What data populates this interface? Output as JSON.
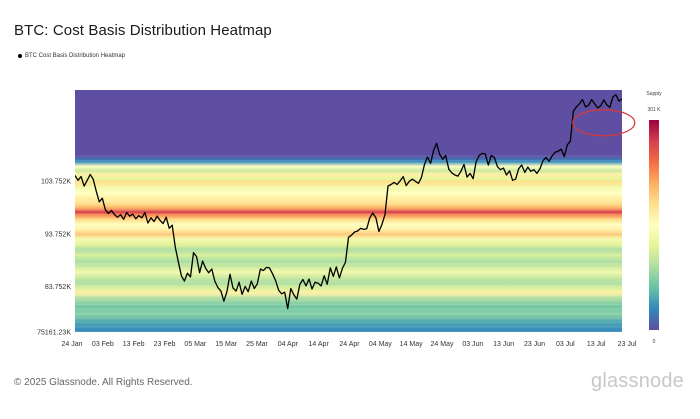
{
  "page": {
    "title": "BTC: Cost Basis Distribution Heatmap",
    "legend_label": "BTC Cost Basis Distribution Heatmap",
    "footer": "© 2025 Glassnode. All Rights Reserved.",
    "brand": "glassnode"
  },
  "chart_data": {
    "type": "heatmap",
    "title": "BTC: Cost Basis Distribution Heatmap",
    "series": [
      {
        "name": "BTC Cost Basis Distribution Heatmap",
        "type": "line",
        "color": "#000000"
      }
    ],
    "x_ticks": [
      "24 Jan",
      "03 Feb",
      "13 Feb",
      "23 Feb",
      "05 Mar",
      "15 Mar",
      "25 Mar",
      "04 Apr",
      "14 Apr",
      "24 Apr",
      "04 May",
      "14 May",
      "24 May",
      "03 Jun",
      "13 Jun",
      "23 Jun",
      "03 Jul",
      "13 Jul",
      "23 Jul"
    ],
    "y_ticks": [
      "103.752K",
      "93.752K",
      "83.752K",
      "75161.23K"
    ],
    "y_tick_values": [
      103752,
      93752,
      83752,
      75161.23
    ],
    "ylim": [
      75161.23,
      121000
    ],
    "colorbar": {
      "title": "Supply",
      "max_label": "301 K",
      "min_label": "0"
    },
    "colorscale": [
      "#5e4fa2",
      "#3288bd",
      "#66c2a5",
      "#abdda4",
      "#e6f598",
      "#ffffbf",
      "#fee08b",
      "#fdae61",
      "#f46d43",
      "#d53e4f",
      "#9e0142"
    ],
    "heat_bands": [
      {
        "price": 121000,
        "intensity": 0.0
      },
      {
        "price": 108500,
        "intensity": 0.0
      },
      {
        "price": 107500,
        "intensity": 0.1
      },
      {
        "price": 106500,
        "intensity": 0.5
      },
      {
        "price": 105800,
        "intensity": 0.35
      },
      {
        "price": 105000,
        "intensity": 0.55
      },
      {
        "price": 104200,
        "intensity": 0.4
      },
      {
        "price": 103500,
        "intensity": 0.6
      },
      {
        "price": 102500,
        "intensity": 0.45
      },
      {
        "price": 101500,
        "intensity": 0.5
      },
      {
        "price": 100500,
        "intensity": 0.55
      },
      {
        "price": 99500,
        "intensity": 0.6
      },
      {
        "price": 98600,
        "intensity": 0.7
      },
      {
        "price": 97900,
        "intensity": 0.9
      },
      {
        "price": 97300,
        "intensity": 0.75
      },
      {
        "price": 96400,
        "intensity": 0.6
      },
      {
        "price": 95500,
        "intensity": 0.5
      },
      {
        "price": 94500,
        "intensity": 0.55
      },
      {
        "price": 93700,
        "intensity": 0.65
      },
      {
        "price": 92800,
        "intensity": 0.45
      },
      {
        "price": 91800,
        "intensity": 0.4
      },
      {
        "price": 90700,
        "intensity": 0.3
      },
      {
        "price": 89700,
        "intensity": 0.38
      },
      {
        "price": 88700,
        "intensity": 0.3
      },
      {
        "price": 87700,
        "intensity": 0.34
      },
      {
        "price": 86500,
        "intensity": 0.45
      },
      {
        "price": 85500,
        "intensity": 0.35
      },
      {
        "price": 84500,
        "intensity": 0.3
      },
      {
        "price": 83500,
        "intensity": 0.38
      },
      {
        "price": 82500,
        "intensity": 0.55
      },
      {
        "price": 81500,
        "intensity": 0.3
      },
      {
        "price": 80000,
        "intensity": 0.22
      },
      {
        "price": 78500,
        "intensity": 0.25
      },
      {
        "price": 77000,
        "intensity": 0.15
      },
      {
        "price": 75161,
        "intensity": 0.1
      }
    ],
    "price_line": {
      "x_day_offsets": [
        0,
        1,
        2,
        3,
        4,
        5,
        6,
        7,
        8,
        9,
        10,
        11,
        12,
        13,
        14,
        15,
        16,
        17,
        18,
        19,
        20,
        21,
        22,
        23,
        24,
        25,
        26,
        27,
        28,
        29,
        30,
        31,
        32,
        33,
        34,
        35,
        36,
        37,
        38,
        39,
        40,
        41,
        42,
        43,
        44,
        45,
        46,
        47,
        48,
        49,
        50,
        51,
        52,
        53,
        54,
        55,
        56,
        57,
        58,
        59,
        60,
        61,
        62,
        63,
        64,
        65,
        66,
        67,
        68,
        69,
        70,
        71,
        72,
        73,
        74,
        75,
        76,
        77,
        78,
        79,
        80,
        81,
        82,
        83,
        84,
        85,
        86,
        87,
        88,
        89,
        90,
        91,
        92,
        93,
        94,
        95,
        96,
        97,
        98,
        99,
        100,
        101,
        102,
        103,
        104,
        105,
        106,
        107,
        108,
        109,
        110,
        111,
        112,
        113,
        114,
        115,
        116,
        117,
        118,
        119,
        120,
        121,
        122,
        123,
        124,
        125,
        126,
        127,
        128,
        129,
        130,
        131,
        132,
        133,
        134,
        135,
        136,
        137,
        138,
        139,
        140,
        141,
        142,
        143,
        144,
        145,
        146,
        147,
        148,
        149,
        150,
        151,
        152,
        153,
        154,
        155,
        156,
        157,
        158,
        159,
        160,
        161,
        162,
        163,
        164,
        165,
        166,
        167,
        168,
        169,
        170,
        171,
        172,
        173,
        174,
        175,
        176,
        177,
        178,
        179,
        180
      ],
      "prices": [
        104800,
        103900,
        104600,
        102800,
        103900,
        105000,
        104100,
        101800,
        99800,
        100500,
        98300,
        97600,
        98200,
        97400,
        96900,
        97400,
        96500,
        97800,
        97100,
        97500,
        96600,
        97200,
        96800,
        97800,
        95800,
        96800,
        96100,
        97100,
        96300,
        95700,
        96900,
        94800,
        95400,
        91200,
        88500,
        85800,
        84800,
        86300,
        85600,
        90200,
        89400,
        86400,
        88600,
        87200,
        86400,
        87100,
        84800,
        83600,
        82900,
        81000,
        82800,
        86100,
        83500,
        82900,
        84600,
        82300,
        83800,
        82800,
        84800,
        83400,
        84300,
        87100,
        86800,
        87400,
        87300,
        86200,
        84900,
        83100,
        82400,
        82700,
        79600,
        83400,
        82200,
        81400,
        84200,
        85100,
        83900,
        85200,
        83300,
        84600,
        84400,
        83900,
        85800,
        84200,
        87300,
        85700,
        87500,
        85400,
        87200,
        88400,
        93100,
        93500,
        94100,
        94300,
        94800,
        94600,
        94700,
        96800,
        97700,
        96800,
        94200,
        95500,
        97400,
        102800,
        103100,
        103500,
        103100,
        103800,
        104600,
        102900,
        103700,
        104100,
        103700,
        103300,
        104400,
        106900,
        108300,
        107100,
        109600,
        110900,
        108800,
        107900,
        108600,
        106000,
        105300,
        104900,
        104700,
        105600,
        106900,
        104500,
        105200,
        104200,
        107400,
        108600,
        109000,
        108900,
        106800,
        108600,
        108200,
        106500,
        105900,
        106200,
        104900,
        105700,
        103900,
        104100,
        106100,
        106800,
        105400,
        106400,
        105600,
        105900,
        105200,
        106100,
        107600,
        108200,
        107500,
        108500,
        109200,
        109400,
        109800,
        108400,
        110600,
        111300,
        117000,
        117800,
        118400,
        119200,
        117800,
        118100,
        119200,
        118400,
        117600,
        118000,
        119100,
        118200,
        117700,
        119700,
        120100,
        118900,
        119300
      ]
    },
    "annotations": [
      {
        "type": "ellipse",
        "color": "#d9383a",
        "label": ""
      }
    ]
  }
}
